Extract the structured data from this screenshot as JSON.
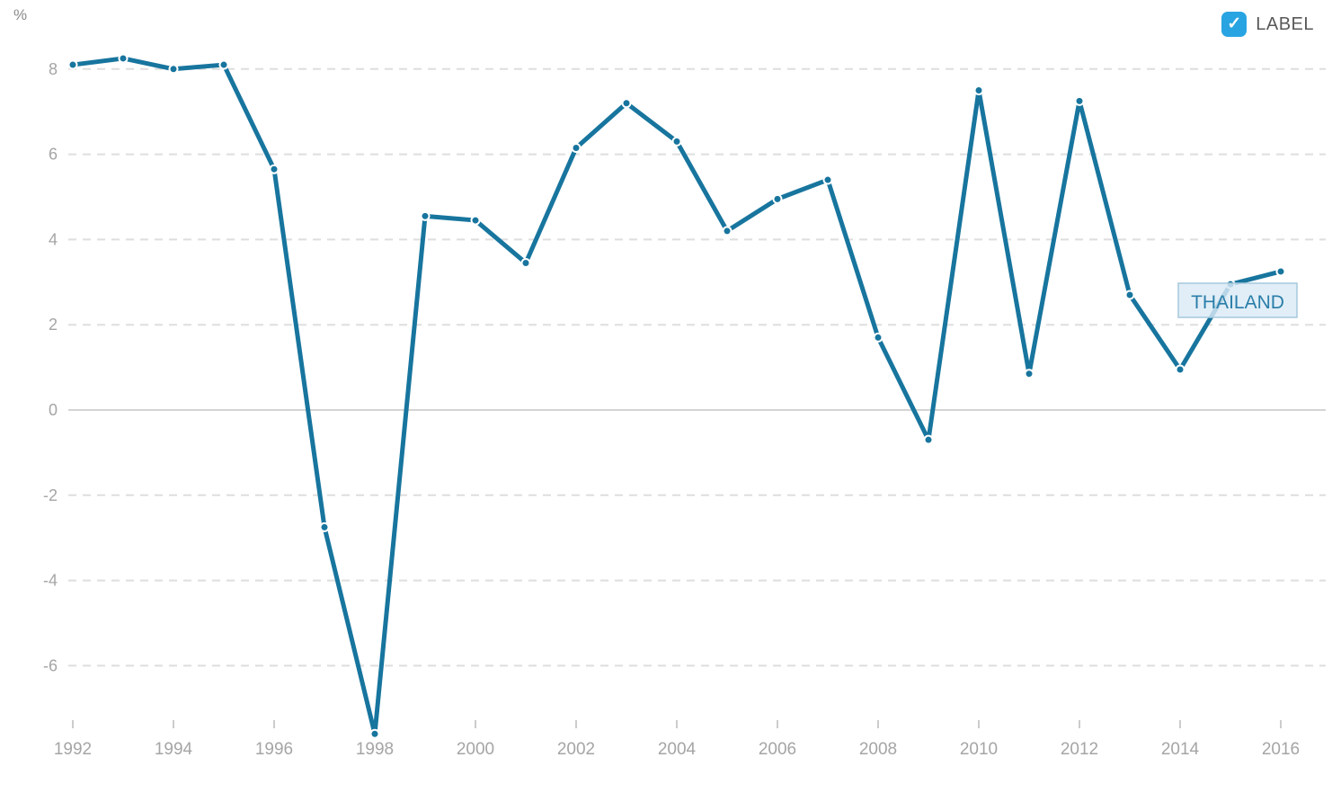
{
  "header": {
    "label_toggle": {
      "text": "LABEL",
      "checked": true,
      "checkmark_icon": "✓"
    }
  },
  "chart_data": {
    "type": "line",
    "title": "",
    "xlabel": "",
    "ylabel": "%",
    "series_label": "THAILAND",
    "x": [
      1992,
      1993,
      1994,
      1995,
      1996,
      1997,
      1998,
      1999,
      2000,
      2001,
      2002,
      2003,
      2004,
      2005,
      2006,
      2007,
      2008,
      2009,
      2010,
      2011,
      2012,
      2013,
      2014,
      2015,
      2016
    ],
    "values": [
      8.1,
      8.25,
      8.0,
      8.1,
      5.65,
      -2.75,
      -7.6,
      4.55,
      4.45,
      3.45,
      6.15,
      7.2,
      6.3,
      4.2,
      4.95,
      5.4,
      1.7,
      -0.7,
      7.5,
      0.85,
      7.25,
      2.7,
      0.95,
      2.95,
      3.25
    ],
    "xticks": [
      1992,
      1994,
      1996,
      1998,
      2000,
      2002,
      2004,
      2006,
      2008,
      2010,
      2012,
      2014,
      2016
    ],
    "yticks": [
      8,
      6,
      4,
      2,
      0,
      -2,
      -4,
      -6
    ],
    "xlim": [
      1992,
      2016
    ],
    "ylim": [
      -7.9,
      8.7
    ],
    "grid": "horizontal-dashed",
    "zero_line": "solid",
    "legend_position": "none",
    "point_markers": true,
    "colors": {
      "line": "#17759e",
      "grid": "#dedede",
      "tick": "#cccccc",
      "zero_line": "#d4d4d4",
      "axis_text": "#a5a5a5",
      "unit_text": "#8a8a8a",
      "toggle_text": "#595959",
      "checkbox": "#29a4e2",
      "label_box_bg": "#dbeaf5",
      "label_box_border": "#a5c9dd",
      "label_box_text": "#2a7ea9"
    }
  }
}
